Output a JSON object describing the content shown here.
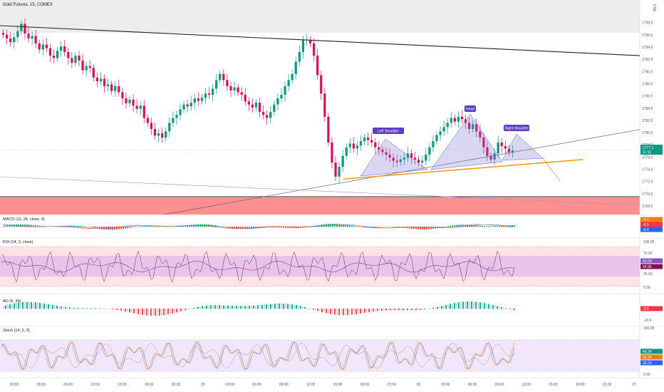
{
  "header": {
    "symbol_title": "Gold Futures, 15, COMEX",
    "currency": "USD"
  },
  "panels": {
    "macd": {
      "title": "MACD (12, 26, close, 9)"
    },
    "rsi": {
      "title": "RSI (14, 2, close)"
    },
    "ao": {
      "title": "AO (5, 34)"
    },
    "stoch": {
      "title": "Stoch (14, 3, 3)"
    }
  },
  "price_tags": [
    {
      "value": "1777.1",
      "sub": "11:11",
      "color": "#089981"
    },
    {
      "value": "-0.1",
      "color": "#f57c00"
    },
    {
      "value": "-0.5",
      "color": "#f23645"
    },
    {
      "value": "-0.4",
      "color": "#2962ff"
    },
    {
      "value": "53.60",
      "color": "#7e57c2"
    },
    {
      "value": "44.90",
      "color": "#880e4f"
    },
    {
      "value": "-2.0",
      "color": "#f23645"
    },
    {
      "value": "46.34",
      "color": "#089981"
    },
    {
      "value": "34.24",
      "color": "#f57c00"
    },
    {
      "value": "30.23",
      "color": "#2962ff"
    }
  ],
  "chart_data": {
    "type": "candlestick",
    "price_axis": {
      "ticks": [
        "1798.0",
        "1796.0",
        "1794.0",
        "1792.0",
        "1790.0",
        "1788.0",
        "1786.0",
        "1784.0",
        "1782.0",
        "1780.0",
        "1778.0",
        "1776.0",
        "1774.0",
        "1772.0",
        "1770.0",
        "1768.0"
      ],
      "ylim": [
        1766.6,
        1798.9
      ]
    },
    "x_axis": {
      "ticks": [
        "03:00",
        "06:00",
        "09:00",
        "12:00",
        "15:00",
        "18:00",
        "20:30",
        "23",
        "03:00",
        "06:00",
        "09:00",
        "12:00",
        "15:00",
        "18:00",
        "21:00",
        "26",
        "03:00",
        "06:00",
        "09:00",
        "12:00",
        "15:00",
        "18:00",
        "20:30",
        "27"
      ]
    },
    "close_series": [
      1796,
      1795.4,
      1794.8,
      1795.6,
      1796.6,
      1797.8,
      1796.2,
      1795.4,
      1795.8,
      1794.6,
      1793.6,
      1794.4,
      1793.8,
      1792.6,
      1792.2,
      1793.4,
      1794.1,
      1793.2,
      1792.2,
      1791.4,
      1792.6,
      1791.8,
      1790.2,
      1790.9,
      1790.6,
      1789,
      1788.4,
      1788.8,
      1787.6,
      1787.9,
      1786.8,
      1787.6,
      1786.6,
      1785.6,
      1784.8,
      1785.4,
      1784.4,
      1783.9,
      1784.4,
      1782.4,
      1781.6,
      1780.6,
      1779.5,
      1779.9,
      1779.2,
      1780.2,
      1781.6,
      1782.4,
      1782.9,
      1783.8,
      1784.6,
      1784.3,
      1784.9,
      1785.6,
      1785.2,
      1785.7,
      1786.4,
      1786.2,
      1787.2,
      1788.6,
      1789.6,
      1788.6,
      1787.6,
      1786.9,
      1787.4,
      1786.6,
      1786.2,
      1785.1,
      1784.6,
      1784.1,
      1784.9,
      1783.4,
      1782.9,
      1782.4,
      1783.4,
      1784.6,
      1785.6,
      1786.2,
      1787.6,
      1788.6,
      1789.6,
      1791.6,
      1793.2,
      1795.1,
      1795.2,
      1794.6,
      1792.6,
      1789.4,
      1786.4,
      1782.6,
      1778.4,
      1775.1,
      1772.8,
      1774.4,
      1776.2,
      1777.6,
      1778.2,
      1777.4,
      1777.9,
      1778.6,
      1779.2,
      1778.8,
      1778.4,
      1777.6,
      1777.2,
      1776.8,
      1776.4,
      1775.9,
      1775.4,
      1775.2,
      1775.6,
      1775.9,
      1776.6,
      1775.9,
      1775.6,
      1775.1,
      1775.4,
      1776.4,
      1777.6,
      1778.6,
      1779.6,
      1780.2,
      1780.9,
      1781.6,
      1782.4,
      1781.8,
      1782.6,
      1782.2,
      1781.6,
      1780.6,
      1781.4,
      1780.2,
      1779.2,
      1777.6,
      1776.2,
      1775.6,
      1776.6,
      1778.4,
      1777.8,
      1777.4,
      1776.8,
      1777.1
    ],
    "trendlines": [
      {
        "type": "descending_resistance",
        "from": 1797.5,
        "to": 1792.6
      },
      {
        "type": "ascending_support",
        "from": 1766.6,
        "to": 1780.5
      },
      {
        "type": "neckline",
        "from": 1772.4,
        "to": 1775.6
      }
    ],
    "support_zone": [
      1767.1,
      1769.5
    ],
    "pattern": {
      "name": "Head and Shoulders",
      "labels": [
        "Left Shoulder",
        "Head",
        "Right Shoulder"
      ]
    },
    "indicators": {
      "rsi": {
        "overbought": 70,
        "oversold": 30,
        "ticks": [
          "100.00",
          "75.00",
          "25.00",
          "0.00"
        ]
      },
      "ao": {
        "ticks": [
          "-10.0"
        ]
      },
      "stoch": {
        "ticks": [
          "100.00",
          "50.00",
          "0.00"
        ]
      }
    }
  }
}
